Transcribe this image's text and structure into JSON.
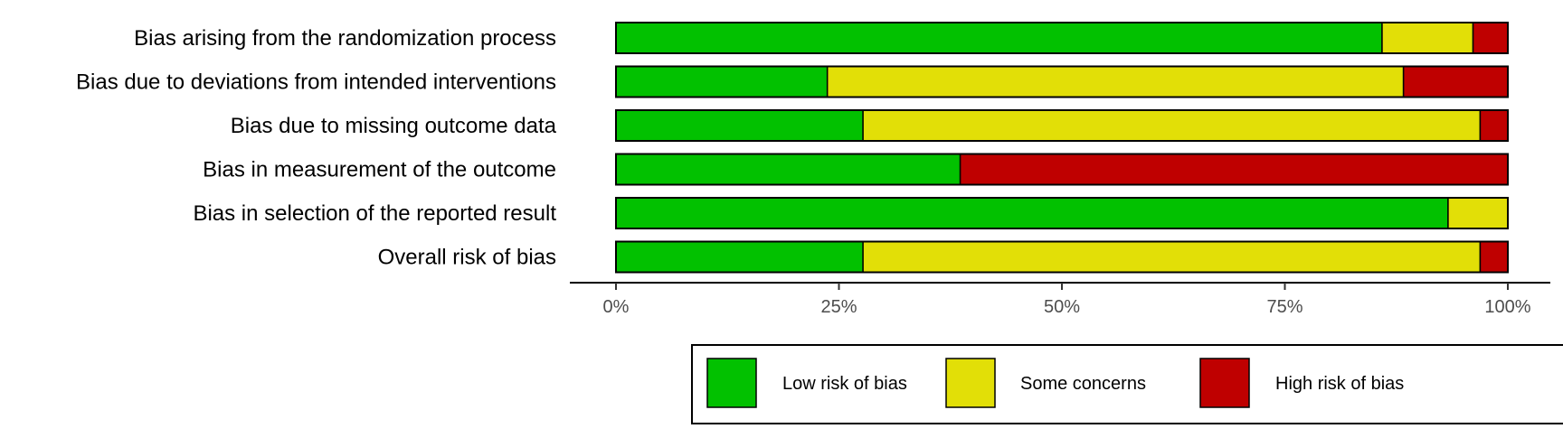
{
  "chart_data": {
    "type": "bar",
    "orientation": "horizontal",
    "stacked": true,
    "categories": [
      "Bias arising from the randomization process",
      "Bias due to deviations from intended interventions",
      "Bias due to missing outcome data",
      "Bias in measurement of the outcome",
      "Bias in selection of the reported result",
      "Overall risk of bias"
    ],
    "series": [
      {
        "name": "Low risk of bias",
        "color": "#02C100",
        "values": [
          85.9,
          23.7,
          27.7,
          38.6,
          93.3,
          27.7
        ]
      },
      {
        "name": "Some concerns",
        "color": "#E2DF07",
        "values": [
          10.2,
          64.6,
          69.2,
          0.0,
          6.7,
          69.2
        ]
      },
      {
        "name": "High risk of bias",
        "color": "#BF0000",
        "values": [
          3.9,
          11.7,
          3.1,
          61.4,
          0.0,
          3.1
        ]
      }
    ],
    "xlim": [
      0,
      100
    ],
    "x_ticks": [
      0,
      25,
      50,
      75,
      100
    ],
    "x_tick_labels": [
      "0%",
      "25%",
      "50%",
      "75%",
      "100%"
    ],
    "title": "",
    "xlabel": "",
    "ylabel": "",
    "legend_position": "bottom",
    "grid": false
  }
}
